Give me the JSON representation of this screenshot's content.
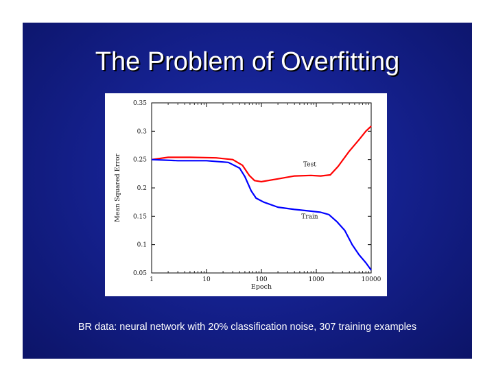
{
  "slide": {
    "title": "The Problem of Overfitting",
    "caption": "BR data: neural network with 20% classification noise, 307 training examples",
    "background_color": "#15218f"
  },
  "chart_data": {
    "type": "line",
    "title": "",
    "xlabel": "Epoch",
    "ylabel": "Mean Squared Error",
    "xscale": "log",
    "xlim": [
      1,
      10000
    ],
    "ylim": [
      0.05,
      0.35
    ],
    "xticks": [
      "1",
      "10",
      "100",
      "1000",
      "10000"
    ],
    "yticks": [
      "0.05",
      "0.1",
      "0.15",
      "0.2",
      "0.25",
      "0.3",
      "0.35"
    ],
    "grid": false,
    "series": [
      {
        "name": "Test",
        "color": "#ff0000",
        "points": [
          [
            1,
            0.25
          ],
          [
            2,
            0.254
          ],
          [
            5,
            0.254
          ],
          [
            15,
            0.253
          ],
          [
            30,
            0.25
          ],
          [
            45,
            0.24
          ],
          [
            60,
            0.222
          ],
          [
            75,
            0.213
          ],
          [
            100,
            0.211
          ],
          [
            200,
            0.216
          ],
          [
            400,
            0.221
          ],
          [
            800,
            0.222
          ],
          [
            1200,
            0.221
          ],
          [
            1800,
            0.223
          ],
          [
            2500,
            0.238
          ],
          [
            4000,
            0.265
          ],
          [
            6000,
            0.285
          ],
          [
            8000,
            0.3
          ],
          [
            10000,
            0.309
          ]
        ]
      },
      {
        "name": "Train",
        "color": "#0000ff",
        "points": [
          [
            1,
            0.25
          ],
          [
            3,
            0.248
          ],
          [
            10,
            0.248
          ],
          [
            25,
            0.245
          ],
          [
            40,
            0.235
          ],
          [
            50,
            0.22
          ],
          [
            65,
            0.195
          ],
          [
            80,
            0.182
          ],
          [
            110,
            0.175
          ],
          [
            200,
            0.166
          ],
          [
            400,
            0.162
          ],
          [
            800,
            0.159
          ],
          [
            1200,
            0.157
          ],
          [
            1700,
            0.153
          ],
          [
            2400,
            0.14
          ],
          [
            3300,
            0.125
          ],
          [
            4500,
            0.1
          ],
          [
            6000,
            0.082
          ],
          [
            8000,
            0.068
          ],
          [
            10000,
            0.055
          ]
        ]
      }
    ]
  }
}
